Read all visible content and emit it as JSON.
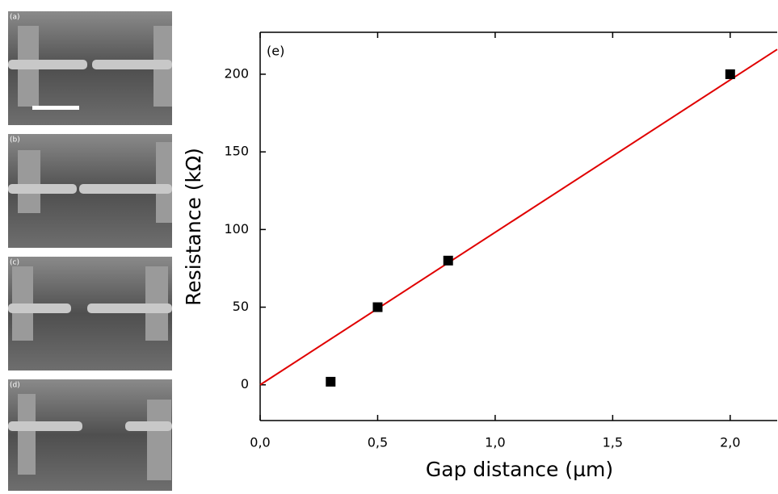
{
  "panels": [
    {
      "label": "(a)"
    },
    {
      "label": "(b)"
    },
    {
      "label": "(c)"
    },
    {
      "label": "(d)"
    }
  ],
  "chart_data": {
    "type": "scatter",
    "annotation": "(e)",
    "x_label": "Gap distance (µm)",
    "y_label": "Resistance (kΩ)",
    "x": [
      0.3,
      0.5,
      0.8,
      2.0
    ],
    "values": [
      2,
      50,
      80,
      200
    ],
    "color": "#000000",
    "fit": {
      "x": [
        0,
        2.2
      ],
      "values": [
        0,
        216
      ],
      "color": "#e00000"
    },
    "xlim": [
      0,
      2.2
    ],
    "ylim": [
      -23,
      227
    ],
    "xticks": [
      {
        "value": 0,
        "label": "0,0"
      },
      {
        "value": 0.5,
        "label": "0,5"
      },
      {
        "value": 1,
        "label": "1,0"
      },
      {
        "value": 1.5,
        "label": "1,5"
      },
      {
        "value": 2,
        "label": "2,0"
      }
    ],
    "yticks": [
      0,
      50,
      100,
      150,
      200
    ]
  }
}
